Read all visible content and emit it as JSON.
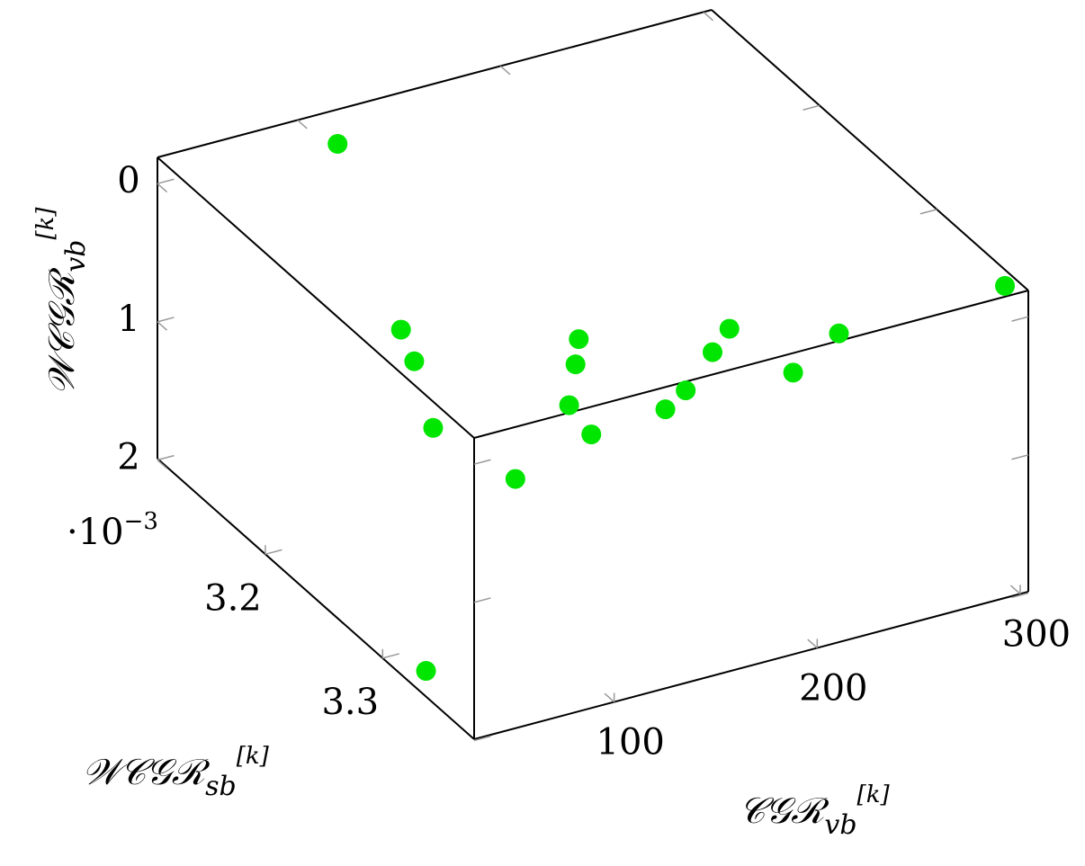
{
  "chart_data": {
    "type": "scatter3d",
    "x_label": {
      "main": "𝒞𝒢ℛ",
      "sub": "vb",
      "sup": "[k]"
    },
    "y_label": {
      "main": "𝒲𝒞𝒢ℛ",
      "sub": "sb",
      "sup": "[k]"
    },
    "z_label": {
      "main": "𝒲𝒞𝒢ℛ",
      "sub": "vb",
      "sup": "[k]"
    },
    "z_multiplier": {
      "base": "·10",
      "exp": "−3"
    },
    "xlim": [
      31,
      304
    ],
    "xticks": [
      100,
      200,
      300
    ],
    "ylim": [
      3.108,
      3.378
    ],
    "yticks": [
      3.2,
      3.3
    ],
    "zlim": [
      -0.19,
      1.99
    ],
    "zticks": [
      0,
      1,
      2
    ],
    "z_reversed": true,
    "series": [
      {
        "color": "#00e600",
        "x": [
          118,
          114,
          105.5,
          84.2,
          93.5,
          177.3,
          165.3,
          145.4,
          141.3,
          180.1,
          195.9,
          222.4,
          238.8,
          244.2,
          278.3,
          297.7,
          41.4
        ],
        "y": [
          3.111,
          3.172,
          3.198,
          3.251,
          3.305,
          3.214,
          3.232,
          3.261,
          3.287,
          3.283,
          3.273,
          3.25,
          3.236,
          3.281,
          3.261,
          3.369,
          3.319
        ],
        "z": [
          0.03,
          0.9,
          0.9,
          0.9,
          0.9,
          0.9,
          0.9,
          0.9,
          0.9,
          0.9,
          0.9,
          0.9,
          0.9,
          0.9,
          0.9,
          -0.18,
          1.98
        ]
      }
    ]
  }
}
